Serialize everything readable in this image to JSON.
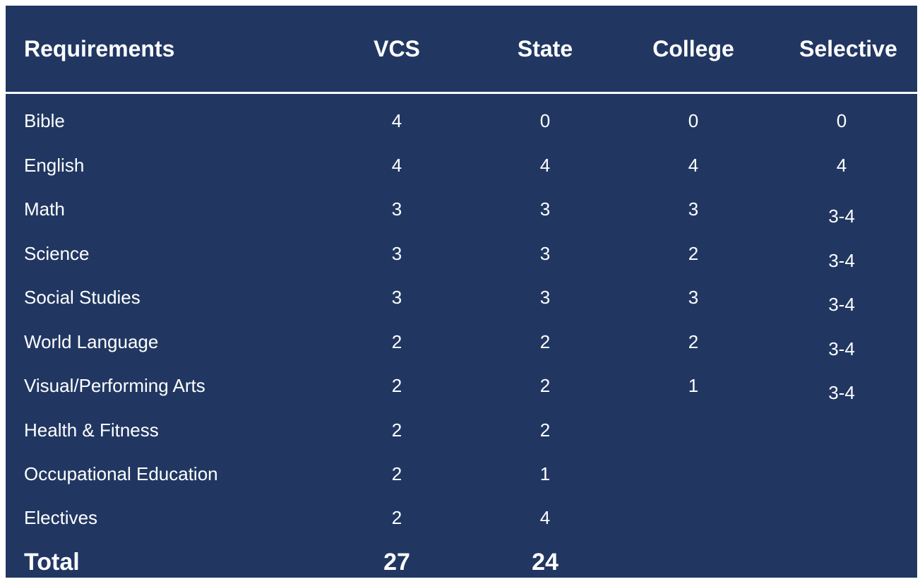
{
  "header": {
    "requirements": "Requirements",
    "vcs": "VCS",
    "state": "State",
    "college": "College",
    "selective": "Selective"
  },
  "rows": [
    {
      "label": "Bible",
      "vcs": "4",
      "state": "0",
      "college": "0",
      "selective": "0"
    },
    {
      "label": "English",
      "vcs": "4",
      "state": "4",
      "college": "4",
      "selective": "4"
    },
    {
      "label": "Math",
      "vcs": "3",
      "state": "3",
      "college": "3",
      "selective": "3-4"
    },
    {
      "label": "Science",
      "vcs": "3",
      "state": "3",
      "college": "2",
      "selective": "3-4"
    },
    {
      "label": "Social Studies",
      "vcs": "3",
      "state": "3",
      "college": "3",
      "selective": "3-4"
    },
    {
      "label": "World Language",
      "vcs": "2",
      "state": "2",
      "college": "2",
      "selective": "3-4"
    },
    {
      "label": "Visual/Performing Arts",
      "vcs": "2",
      "state": "2",
      "college": "1",
      "selective": "3-4"
    },
    {
      "label": "Health & Fitness",
      "vcs": "2",
      "state": "2",
      "college": "",
      "selective": ""
    },
    {
      "label": "Occupational Education",
      "vcs": "2",
      "state": "1",
      "college": "",
      "selective": ""
    },
    {
      "label": "Electives",
      "vcs": "2",
      "state": "4",
      "college": "",
      "selective": ""
    }
  ],
  "total": {
    "label": "Total",
    "vcs": "27",
    "state": "24",
    "college": "",
    "selective": ""
  },
  "colors": {
    "background": "#213762",
    "text": "#ffffff"
  }
}
